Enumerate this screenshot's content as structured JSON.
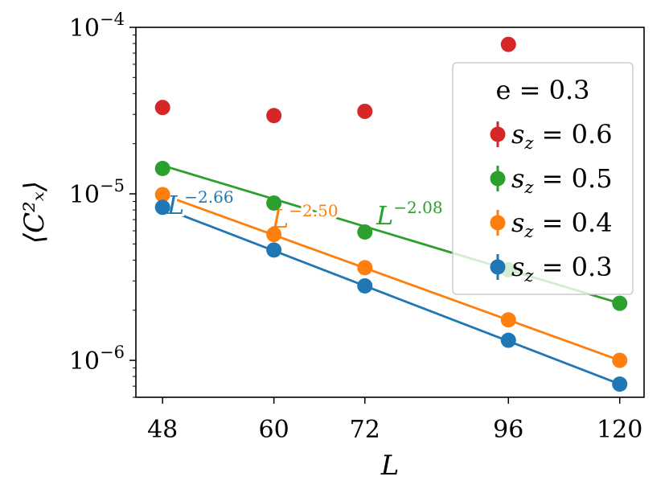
{
  "chart_data": {
    "type": "scatter",
    "x_scale": "log",
    "y_scale": "log",
    "xlabel": "L",
    "ylabel": "⟨C²ₓ⟩",
    "x_ticks": [
      48,
      60,
      72,
      96,
      120
    ],
    "x_tick_labels": [
      "48",
      "60",
      "72",
      "96",
      "120"
    ],
    "y_ticks": [
      1e-06,
      1e-05,
      0.0001
    ],
    "y_tick_labels": [
      {
        "base": "10",
        "exp": "−6"
      },
      {
        "base": "10",
        "exp": "−5"
      },
      {
        "base": "10",
        "exp": "−4"
      }
    ],
    "xlim": [
      45.5,
      126
    ],
    "ylim": [
      6e-07,
      0.0001
    ],
    "grid": false,
    "legend": {
      "position": "upper right",
      "title": "e = 0.3"
    },
    "series": [
      {
        "name": "s_z = 0.6",
        "label_var": "s",
        "label_sub": "z",
        "label_rest": " = 0.6",
        "color": "#d62728",
        "x": [
          48,
          60,
          72,
          96
        ],
        "values": [
          3.3e-05,
          2.95e-05,
          3.13e-05,
          7.9e-05
        ],
        "fit": null
      },
      {
        "name": "s_z = 0.5",
        "label_var": "s",
        "label_sub": "z",
        "label_rest": " = 0.5",
        "color": "#2ca02c",
        "x": [
          48,
          60,
          72,
          96,
          120
        ],
        "values": [
          1.42e-05,
          8.8e-06,
          5.9e-06,
          3.5e-06,
          2.2e-06
        ],
        "fit": {
          "exponent": -2.08,
          "label_base": "L",
          "label_exp": "−2.08"
        }
      },
      {
        "name": "s_z = 0.4",
        "label_var": "s",
        "label_sub": "z",
        "label_rest": " = 0.4",
        "color": "#ff7f0e",
        "x": [
          48,
          60,
          72,
          96,
          120
        ],
        "values": [
          9.9e-06,
          5.7e-06,
          3.6e-06,
          1.75e-06,
          1e-06
        ],
        "fit": {
          "exponent": -2.5,
          "label_base": "L",
          "label_exp": "−2.50"
        }
      },
      {
        "name": "s_z = 0.3",
        "label_var": "s",
        "label_sub": "z",
        "label_rest": " = 0.3",
        "color": "#1f77b4",
        "x": [
          48,
          60,
          72,
          96,
          120
        ],
        "values": [
          8.3e-06,
          4.6e-06,
          2.8e-06,
          1.32e-06,
          7.2e-07
        ],
        "fit": {
          "exponent": -2.66,
          "label_base": "L",
          "label_exp": "−2.66"
        }
      }
    ]
  }
}
